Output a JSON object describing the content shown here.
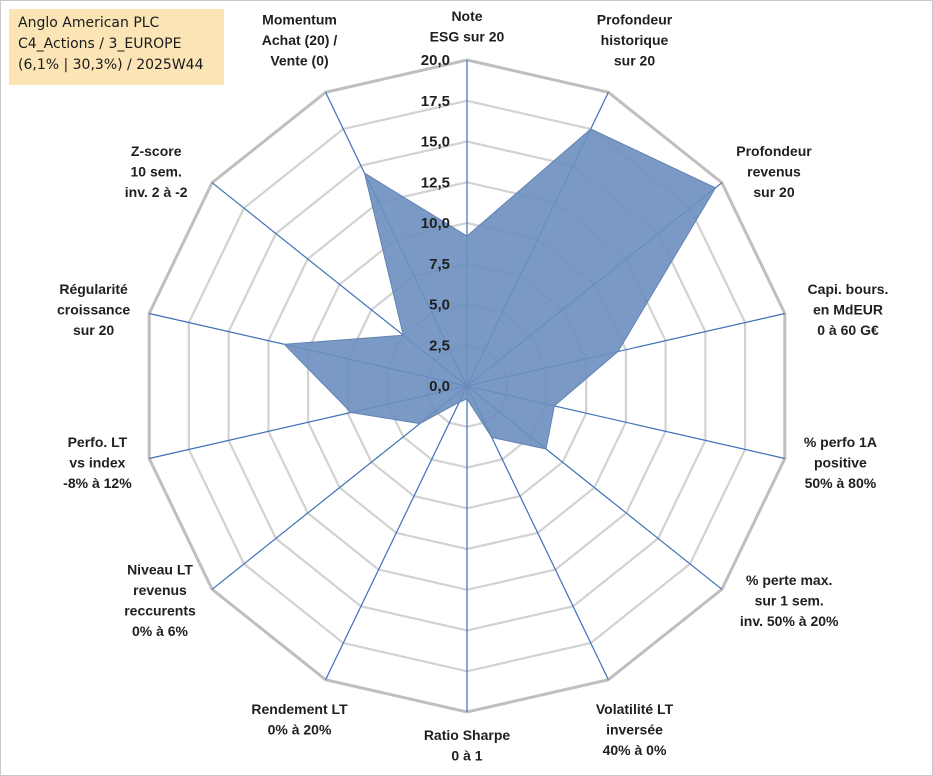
{
  "header": {
    "lines": [
      "Anglo American PLC",
      "C4_Actions / 3_EUROPE",
      "(6,1% | 30,3%) / 2025W44"
    ]
  },
  "chart_data": {
    "type": "radar",
    "rmax": 20,
    "ticks": [
      "0,0",
      "2,5",
      "5,0",
      "7,5",
      "10,0",
      "12,5",
      "15,0",
      "17,5",
      "20,0"
    ],
    "axes": [
      {
        "label": [
          "Note",
          "ESG sur 20"
        ],
        "value": 9.2
      },
      {
        "label": [
          "Profondeur",
          "historique",
          "sur 20"
        ],
        "value": 17.5
      },
      {
        "label": [
          "Profondeur",
          "revenus",
          "sur 20"
        ],
        "value": 19.5
      },
      {
        "label": [
          "Capi. bours.",
          "en MdEUR",
          "0 à 60 G€"
        ],
        "value": 9.5
      },
      {
        "label": [
          "% perfo 1A",
          "positive",
          "50% à 80%"
        ],
        "value": 5.5
      },
      {
        "label": [
          "% perte max.",
          "sur 1 sem.",
          "inv. 50% à 20%"
        ],
        "value": 6.2
      },
      {
        "label": [
          "Volatilité LT",
          "inversée",
          "40% à 0%"
        ],
        "value": 3.5
      },
      {
        "label": [
          "Ratio Sharpe",
          "0 à 1"
        ],
        "value": 0.8
      },
      {
        "label": [
          "Rendement LT",
          "0% à 20%"
        ],
        "value": 1.1
      },
      {
        "label": [
          "Niveau LT",
          "revenus",
          "reccurents",
          "0% à 6%"
        ],
        "value": 3.7
      },
      {
        "label": [
          "Perfo. LT",
          "vs index",
          "-8% à 12%"
        ],
        "value": 7.3
      },
      {
        "label": [
          "Régularité",
          "croissance",
          "sur 20"
        ],
        "value": 11.5
      },
      {
        "label": [
          "Z-score",
          "10 sem.",
          "inv. 2 à -2"
        ],
        "value": 5.0
      },
      {
        "label": [
          "Momentum",
          "Achat (20) /",
          "Vente (0)"
        ],
        "value": 14.5
      }
    ],
    "series": [
      {
        "color": "#6b8fbf"
      }
    ],
    "grid": true
  }
}
